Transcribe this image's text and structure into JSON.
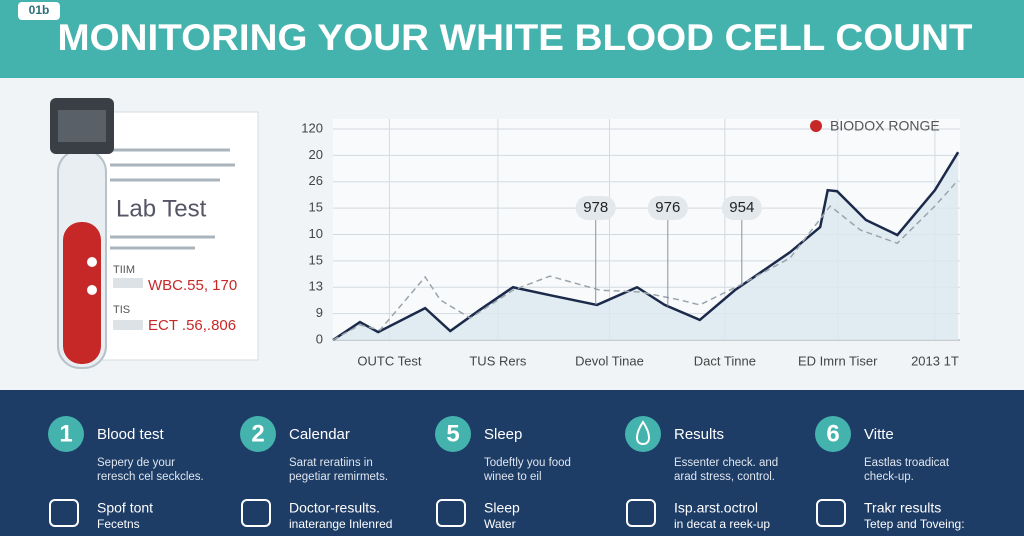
{
  "header": {
    "badge": "01b",
    "title": "MONITORING YOUR WHITE BLOOD CELL COUNT"
  },
  "lab_card": {
    "title": "Lab Test",
    "row1_label": "TIIM",
    "row1_value": "WBC.55, 170",
    "row2_label": "TIS",
    "row2_value": "ECT .56,.806"
  },
  "chart_data": {
    "type": "line",
    "ylim": [
      0,
      8
    ],
    "yticks": [
      {
        "value": 0,
        "label": "0"
      },
      {
        "value": 1,
        "label": "9"
      },
      {
        "value": 2,
        "label": "13"
      },
      {
        "value": 3,
        "label": "15"
      },
      {
        "value": 4,
        "label": "10"
      },
      {
        "value": 5,
        "label": "15"
      },
      {
        "value": 6,
        "label": "26"
      },
      {
        "value": 7,
        "label": "20"
      },
      {
        "value": 8,
        "label": "120"
      }
    ],
    "xlim": [
      0,
      100
    ],
    "xticks": [
      {
        "value": 9,
        "label": "OUTC Test"
      },
      {
        "value": 26.3,
        "label": "TUS Rers"
      },
      {
        "value": 44.1,
        "label": "Devol Tinae"
      },
      {
        "value": 62.5,
        "label": "Dact Tinne"
      },
      {
        "value": 80.5,
        "label": "ED Imrn Tiser"
      },
      {
        "value": 96,
        "label": "2013 1T"
      }
    ],
    "grid": true,
    "legend": {
      "label": "BIODOX RONGE",
      "color": "#c62828"
    },
    "series": [
      {
        "color": "#1b2a4a",
        "style": "solid",
        "fill": "#dbe9f0",
        "x": [
          0,
          4.3,
          7.2,
          14.7,
          18.7,
          23.4,
          28.7,
          34.6,
          42.1,
          48.5,
          52.9,
          58.5,
          64.1,
          72.9,
          77.7,
          78.9,
          80.4,
          85.0,
          90.0,
          96.0,
          99.7
        ],
        "values": [
          0,
          0.68,
          0.3,
          1.21,
          0.34,
          1.14,
          2.0,
          1.7,
          1.33,
          2.0,
          1.33,
          0.76,
          1.89,
          3.33,
          4.28,
          5.68,
          5.64,
          4.55,
          3.98,
          5.68,
          7.12
        ]
      },
      {
        "color": "#9aa4ad",
        "style": "dashed",
        "x": [
          0,
          4.3,
          7.5,
          14.7,
          17.1,
          21.9,
          28.7,
          34.6,
          42.6,
          49.0,
          55.3,
          58.5,
          64.9,
          72.9,
          79.3,
          84.1,
          90.0,
          96.0,
          99.7
        ],
        "values": [
          0,
          0.57,
          0.38,
          2.39,
          1.52,
          0.83,
          1.89,
          2.42,
          1.89,
          1.82,
          1.52,
          1.33,
          2.08,
          3.11,
          5.08,
          4.17,
          3.67,
          5.08,
          6.06
        ]
      }
    ],
    "annotations": [
      {
        "text": "978",
        "x": 41.9
      },
      {
        "text": "976",
        "x": 53.4
      },
      {
        "text": "954",
        "x": 65.2
      }
    ]
  },
  "steps": [
    {
      "number": "1",
      "title": "Blood test",
      "desc": [
        "Sepery de your",
        "reresch cel seckcles."
      ],
      "sub": [
        "Spof tont",
        "Fecetns"
      ]
    },
    {
      "number": "2",
      "title": "Calendar",
      "desc": [
        "Sarat reratiins in",
        "pegetiar remirmets."
      ],
      "sub": [
        "Doctor-results.",
        "inaterange Inlenred"
      ]
    },
    {
      "number": "5",
      "title": "Sleep",
      "desc": [
        "Todeftly you food",
        "winee to eil"
      ],
      "sub": [
        "Sleep",
        "Water"
      ]
    },
    {
      "title": "Results",
      "desc": [
        "Essenter check. and",
        "arad stress, control."
      ],
      "sub": [
        "Isp.arst.octrol",
        "in decat a reek-up"
      ]
    },
    {
      "number": "6",
      "title": "Vitte",
      "desc": [
        "Eastlas troadicat",
        "check-up."
      ],
      "sub": [
        "Trakr results",
        "Tetep and Toveing:"
      ]
    }
  ]
}
